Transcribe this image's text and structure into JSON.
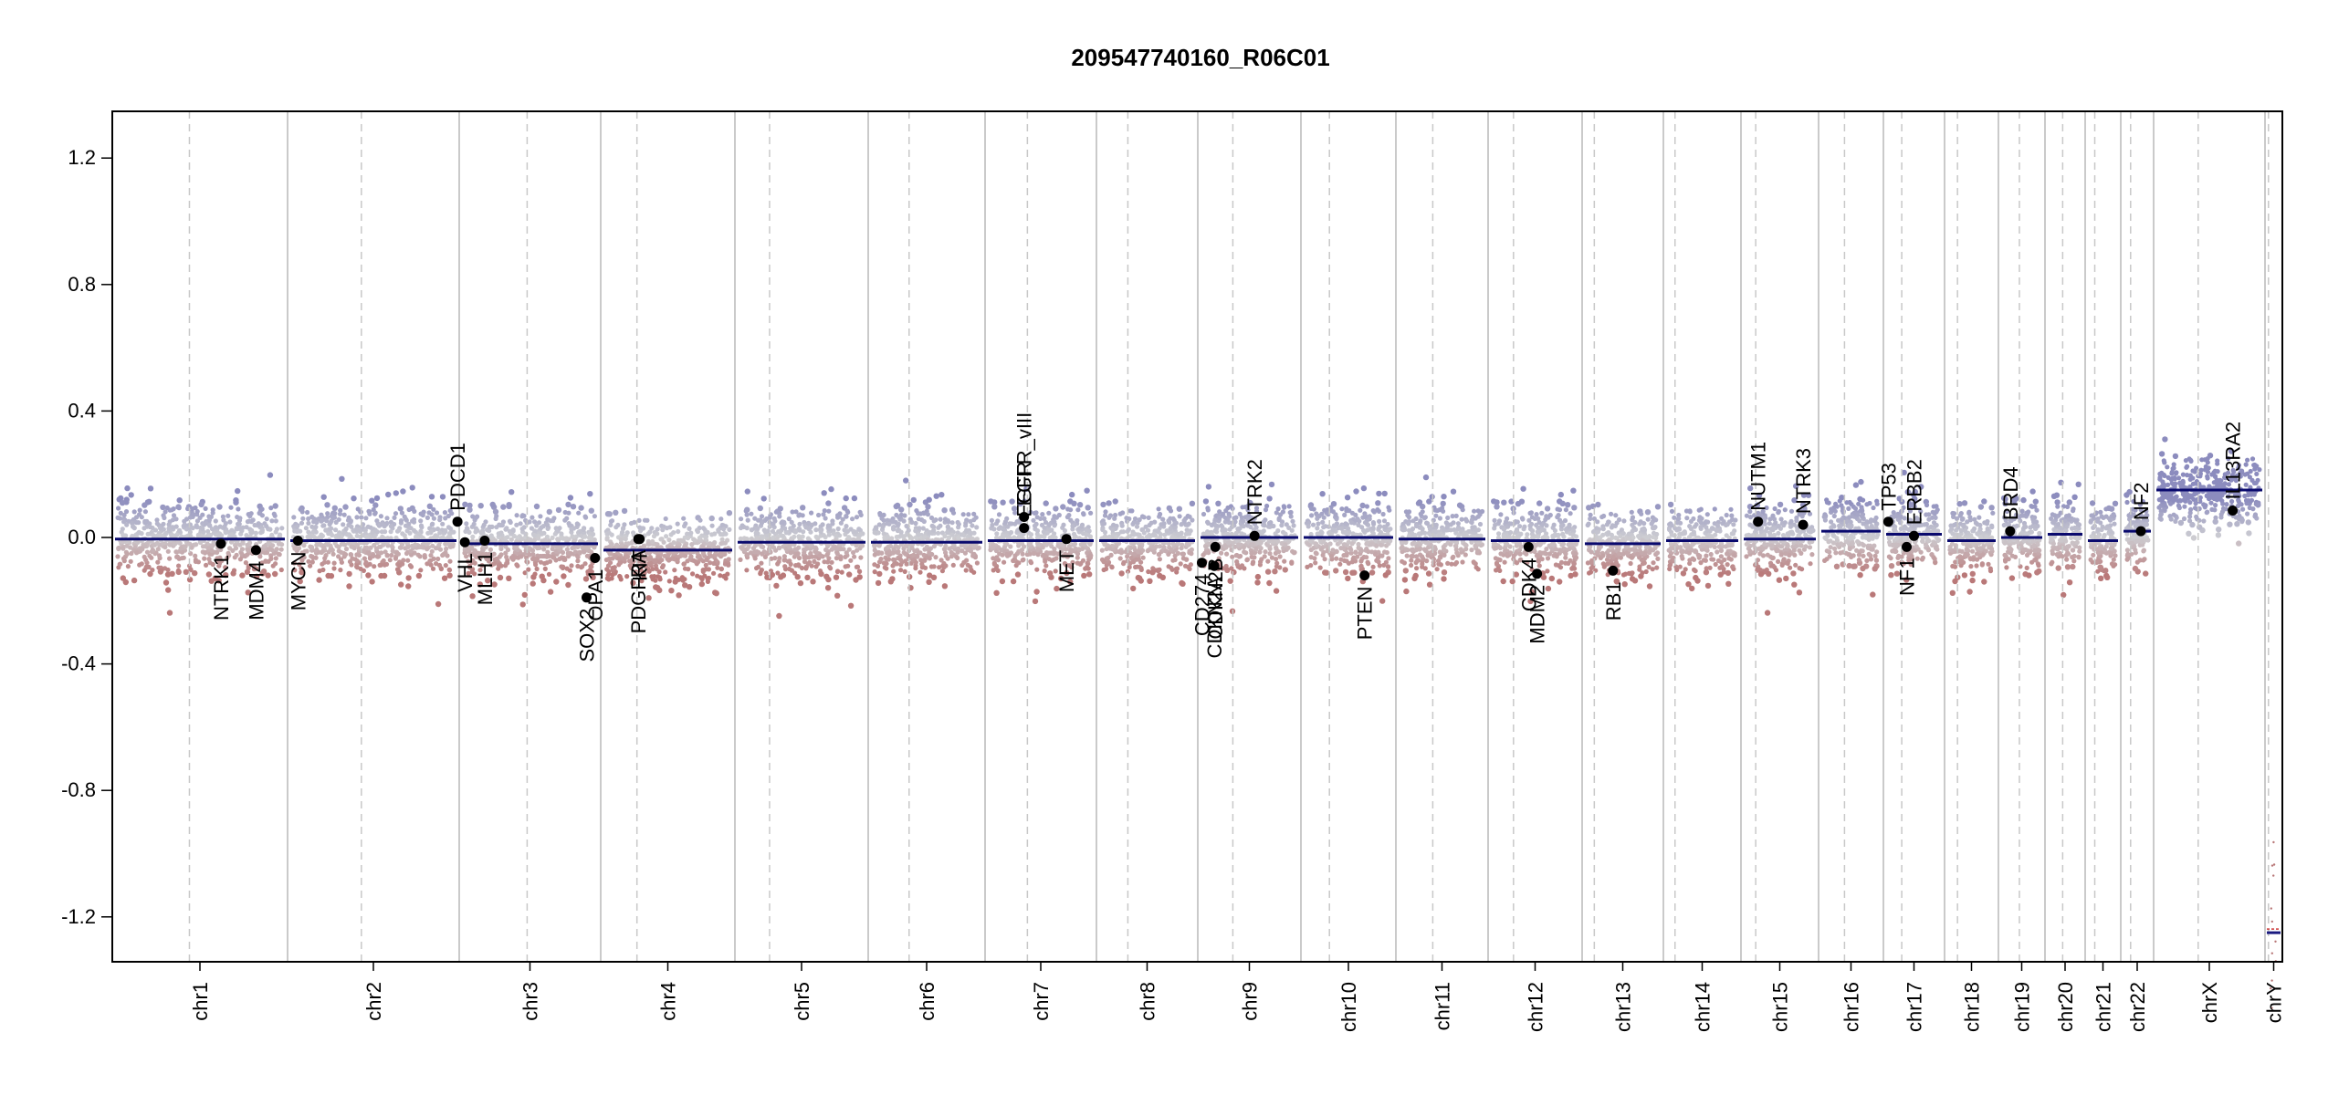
{
  "chart_data": {
    "type": "scatter",
    "title": "209547740160_R06C01",
    "xlabel": "",
    "ylabel": "",
    "ylim": [
      -1.35,
      1.35
    ],
    "yticks": [
      "1.2",
      "0.8",
      "0.4",
      "0.0",
      "-0.4",
      "-0.8",
      "-1.2"
    ],
    "chromosomes": [
      {
        "name": "chr1",
        "centromere_frac": 0.44
      },
      {
        "name": "chr2",
        "centromere_frac": 0.43
      },
      {
        "name": "chr3",
        "centromere_frac": 0.48
      },
      {
        "name": "chr4",
        "centromere_frac": 0.27
      },
      {
        "name": "chr5",
        "centromere_frac": 0.26
      },
      {
        "name": "chr6",
        "centromere_frac": 0.35
      },
      {
        "name": "chr7",
        "centromere_frac": 0.38
      },
      {
        "name": "chr8",
        "centromere_frac": 0.31
      },
      {
        "name": "chr9",
        "centromere_frac": 0.34
      },
      {
        "name": "chr10",
        "centromere_frac": 0.3
      },
      {
        "name": "chr11",
        "centromere_frac": 0.4
      },
      {
        "name": "chr12",
        "centromere_frac": 0.27
      },
      {
        "name": "chr13",
        "centromere_frac": 0.15
      },
      {
        "name": "chr14",
        "centromere_frac": 0.15
      },
      {
        "name": "chr15",
        "centromere_frac": 0.19
      },
      {
        "name": "chr16",
        "centromere_frac": 0.4
      },
      {
        "name": "chr17",
        "centromere_frac": 0.3
      },
      {
        "name": "chr18",
        "centromere_frac": 0.24
      },
      {
        "name": "chr19",
        "centromere_frac": 0.45
      },
      {
        "name": "chr20",
        "centromere_frac": 0.44
      },
      {
        "name": "chr21",
        "centromere_frac": 0.27
      },
      {
        "name": "chr22",
        "centromere_frac": 0.3
      },
      {
        "name": "chrX",
        "centromere_frac": 0.4
      },
      {
        "name": "chrY",
        "centromere_frac": 0.2
      }
    ],
    "segments": [
      {
        "chrom": "chr1",
        "value": -0.005
      },
      {
        "chrom": "chr2",
        "value": -0.01
      },
      {
        "chrom": "chr3",
        "value": -0.02
      },
      {
        "chrom": "chr4",
        "value": -0.04
      },
      {
        "chrom": "chr5",
        "value": -0.015
      },
      {
        "chrom": "chr6",
        "value": -0.015
      },
      {
        "chrom": "chr7",
        "value": -0.01
      },
      {
        "chrom": "chr8",
        "value": -0.01
      },
      {
        "chrom": "chr9",
        "value": 0.0
      },
      {
        "chrom": "chr10",
        "value": 0.0
      },
      {
        "chrom": "chr11",
        "value": -0.005
      },
      {
        "chrom": "chr12",
        "value": -0.01
      },
      {
        "chrom": "chr13",
        "value": -0.02
      },
      {
        "chrom": "chr14",
        "value": -0.01
      },
      {
        "chrom": "chr15",
        "value": -0.005
      },
      {
        "chrom": "chr16",
        "value": 0.02
      },
      {
        "chrom": "chr17",
        "value": 0.01
      },
      {
        "chrom": "chr18",
        "value": -0.01
      },
      {
        "chrom": "chr19",
        "value": 0.0
      },
      {
        "chrom": "chr20",
        "value": 0.01
      },
      {
        "chrom": "chr21",
        "value": -0.01
      },
      {
        "chrom": "chr22",
        "value": 0.02
      },
      {
        "chrom": "chrX",
        "value": 0.15
      },
      {
        "chrom": "chrY",
        "value": -1.25
      }
    ],
    "genes": [
      {
        "name": "NTRK1",
        "chrom": "chr1",
        "pos": 0.62,
        "value": -0.02,
        "label_side": "below"
      },
      {
        "name": "MDM4",
        "chrom": "chr1",
        "pos": 0.82,
        "value": -0.04,
        "label_side": "below"
      },
      {
        "name": "MYCN",
        "chrom": "chr2",
        "pos": 0.06,
        "value": -0.01,
        "label_side": "below"
      },
      {
        "name": "PDCD1",
        "chrom": "chr2",
        "pos": 0.99,
        "value": 0.05,
        "label_side": "above"
      },
      {
        "name": "VHL",
        "chrom": "chr3",
        "pos": 0.04,
        "value": -0.015,
        "label_side": "below"
      },
      {
        "name": "MLH1",
        "chrom": "chr3",
        "pos": 0.18,
        "value": -0.01,
        "label_side": "below"
      },
      {
        "name": "SOX2",
        "chrom": "chr3",
        "pos": 0.9,
        "value": -0.19,
        "label_side": "below"
      },
      {
        "name": "OPA1",
        "chrom": "chr3",
        "pos": 0.96,
        "value": -0.065,
        "label_side": "below"
      },
      {
        "name": "PDGFRA",
        "chrom": "chr4",
        "pos": 0.28,
        "value": -0.005,
        "label_side": "below"
      },
      {
        "name": "KIT",
        "chrom": "chr4",
        "pos": 0.29,
        "value": -0.005,
        "label_side": "below"
      },
      {
        "name": "EGFR_vIII",
        "chrom": "chr7",
        "pos": 0.35,
        "value": 0.065,
        "label_side": "above"
      },
      {
        "name": "EGFR",
        "chrom": "chr7",
        "pos": 0.35,
        "value": 0.03,
        "label_side": "above"
      },
      {
        "name": "MET",
        "chrom": "chr7",
        "pos": 0.73,
        "value": -0.005,
        "label_side": "below"
      },
      {
        "name": "CD274",
        "chrom": "chr9",
        "pos": 0.04,
        "value": -0.08,
        "label_side": "below"
      },
      {
        "name": "CDKN2A",
        "chrom": "chr9",
        "pos": 0.16,
        "value": -0.09,
        "label_side": "below"
      },
      {
        "name": "CDKN2B",
        "chrom": "chr9",
        "pos": 0.17,
        "value": -0.03,
        "label_side": "below"
      },
      {
        "name": "NTRK2",
        "chrom": "chr9",
        "pos": 0.55,
        "value": 0.005,
        "label_side": "above"
      },
      {
        "name": "PTEN",
        "chrom": "chr10",
        "pos": 0.67,
        "value": -0.12,
        "label_side": "below"
      },
      {
        "name": "CDK4",
        "chrom": "chr12",
        "pos": 0.43,
        "value": -0.03,
        "label_side": "below"
      },
      {
        "name": "MDM2",
        "chrom": "chr12",
        "pos": 0.52,
        "value": -0.115,
        "label_side": "below"
      },
      {
        "name": "RB1",
        "chrom": "chr13",
        "pos": 0.38,
        "value": -0.105,
        "label_side": "below"
      },
      {
        "name": "NUTM1",
        "chrom": "chr15",
        "pos": 0.22,
        "value": 0.05,
        "label_side": "above"
      },
      {
        "name": "NTRK3",
        "chrom": "chr15",
        "pos": 0.8,
        "value": 0.04,
        "label_side": "above"
      },
      {
        "name": "TP53",
        "chrom": "chr17",
        "pos": 0.08,
        "value": 0.05,
        "label_side": "above"
      },
      {
        "name": "ERBB2",
        "chrom": "chr17",
        "pos": 0.5,
        "value": 0.005,
        "label_side": "above"
      },
      {
        "name": "NF1",
        "chrom": "chr17",
        "pos": 0.38,
        "value": -0.03,
        "label_side": "below"
      },
      {
        "name": "BRD4",
        "chrom": "chr19",
        "pos": 0.25,
        "value": 0.02,
        "label_side": "above"
      },
      {
        "name": "NF2",
        "chrom": "chr22",
        "pos": 0.61,
        "value": 0.02,
        "label_side": "above"
      },
      {
        "name": "IL13RA2",
        "chrom": "chrX",
        "pos": 0.71,
        "value": 0.085,
        "label_side": "above"
      }
    ]
  }
}
